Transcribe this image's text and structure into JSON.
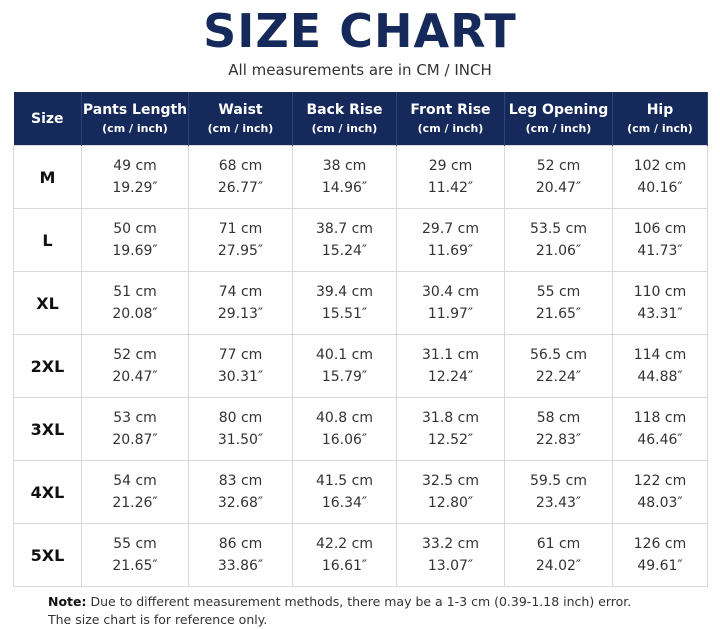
{
  "header": {
    "title": "SIZE CHART",
    "subtitle": "All measurements are in CM / INCH"
  },
  "table": {
    "columns": [
      {
        "title": "Size"
      },
      {
        "title": "Pants Length",
        "unit": "(cm / inch)"
      },
      {
        "title": "Waist",
        "unit": "(cm / inch)"
      },
      {
        "title": "Back Rise",
        "unit": "(cm / inch)"
      },
      {
        "title": "Front Rise",
        "unit": "(cm / inch)"
      },
      {
        "title": "Leg Opening",
        "unit": "(cm / inch)"
      },
      {
        "title": "Hip",
        "unit": "(cm / inch)"
      }
    ],
    "rows": [
      {
        "size": "M",
        "cells": [
          [
            "49 cm",
            "19.29″"
          ],
          [
            "68 cm",
            "26.77″"
          ],
          [
            "38 cm",
            "14.96″"
          ],
          [
            "29 cm",
            "11.42″"
          ],
          [
            "52 cm",
            "20.47″"
          ],
          [
            "102 cm",
            "40.16″"
          ]
        ]
      },
      {
        "size": "L",
        "cells": [
          [
            "50 cm",
            "19.69″"
          ],
          [
            "71 cm",
            "27.95″"
          ],
          [
            "38.7 cm",
            "15.24″"
          ],
          [
            "29.7 cm",
            "11.69″"
          ],
          [
            "53.5 cm",
            "21.06″"
          ],
          [
            "106 cm",
            "41.73″"
          ]
        ]
      },
      {
        "size": "XL",
        "cells": [
          [
            "51 cm",
            "20.08″"
          ],
          [
            "74 cm",
            "29.13″"
          ],
          [
            "39.4 cm",
            "15.51″"
          ],
          [
            "30.4 cm",
            "11.97″"
          ],
          [
            "55 cm",
            "21.65″"
          ],
          [
            "110 cm",
            "43.31″"
          ]
        ]
      },
      {
        "size": "2XL",
        "cells": [
          [
            "52 cm",
            "20.47″"
          ],
          [
            "77 cm",
            "30.31″"
          ],
          [
            "40.1 cm",
            "15.79″"
          ],
          [
            "31.1 cm",
            "12.24″"
          ],
          [
            "56.5 cm",
            "22.24″"
          ],
          [
            "114 cm",
            "44.88″"
          ]
        ]
      },
      {
        "size": "3XL",
        "cells": [
          [
            "53 cm",
            "20.87″"
          ],
          [
            "80 cm",
            "31.50″"
          ],
          [
            "40.8 cm",
            "16.06″"
          ],
          [
            "31.8 cm",
            "12.52″"
          ],
          [
            "58 cm",
            "22.83″"
          ],
          [
            "118 cm",
            "46.46″"
          ]
        ]
      },
      {
        "size": "4XL",
        "cells": [
          [
            "54 cm",
            "21.26″"
          ],
          [
            "83 cm",
            "32.68″"
          ],
          [
            "41.5 cm",
            "16.34″"
          ],
          [
            "32.5 cm",
            "12.80″"
          ],
          [
            "59.5 cm",
            "23.43″"
          ],
          [
            "122 cm",
            "48.03″"
          ]
        ]
      },
      {
        "size": "5XL",
        "cells": [
          [
            "55 cm",
            "21.65″"
          ],
          [
            "86 cm",
            "33.86″"
          ],
          [
            "42.2 cm",
            "16.61″"
          ],
          [
            "33.2 cm",
            "13.07″"
          ],
          [
            "61 cm",
            "24.02″"
          ],
          [
            "126 cm",
            "49.61″"
          ]
        ]
      }
    ]
  },
  "note": {
    "label": "Note:",
    "text": "Due to different measurement methods, there may be a 1-3 cm (0.39-1.18 inch) error.",
    "line2": "The size chart is for reference only."
  }
}
